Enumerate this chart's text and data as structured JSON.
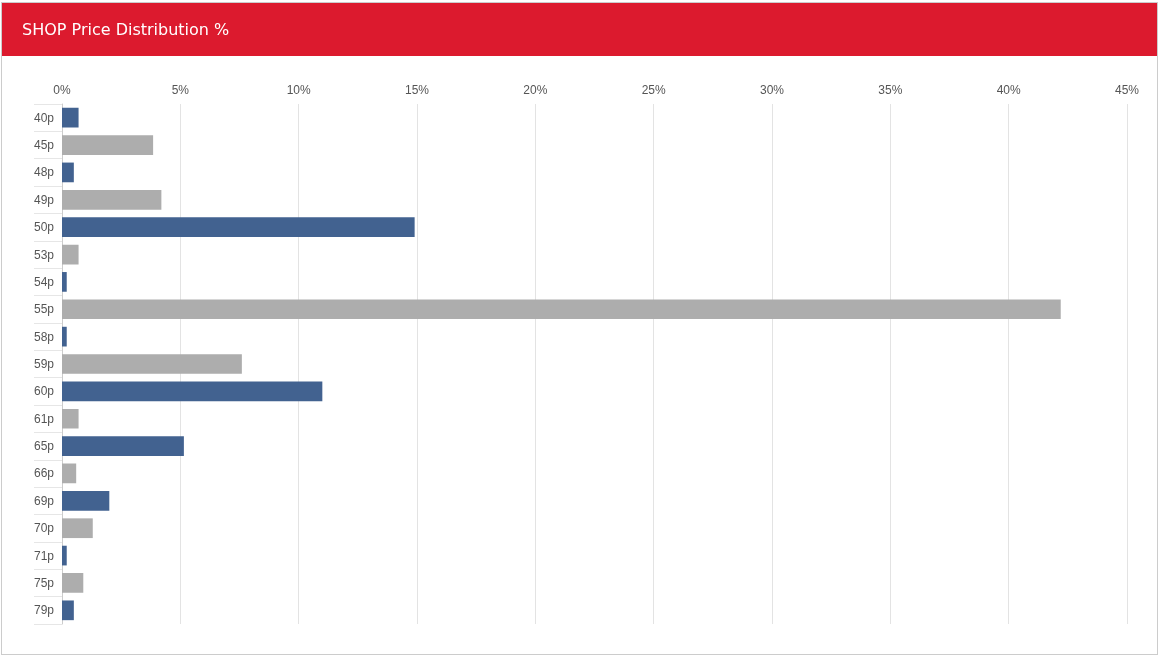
{
  "chart_data": {
    "type": "bar",
    "orientation": "horizontal",
    "title": "SHOP Price Distribution %",
    "categories": [
      "40p",
      "45p",
      "48p",
      "49p",
      "50p",
      "53p",
      "54p",
      "55p",
      "58p",
      "59p",
      "60p",
      "61p",
      "65p",
      "66p",
      "69p",
      "70p",
      "71p",
      "75p",
      "79p"
    ],
    "values": [
      0.7,
      3.85,
      0.5,
      4.2,
      14.9,
      0.7,
      0.2,
      42.2,
      0.2,
      7.6,
      11.0,
      0.7,
      5.15,
      0.6,
      2.0,
      1.3,
      0.2,
      0.9,
      0.5
    ],
    "colors": [
      "#426290",
      "#adadad",
      "#426290",
      "#adadad",
      "#426290",
      "#adadad",
      "#426290",
      "#adadad",
      "#426290",
      "#adadad",
      "#426290",
      "#adadad",
      "#426290",
      "#adadad",
      "#426290",
      "#adadad",
      "#426290",
      "#adadad",
      "#426290"
    ],
    "xlim": [
      0,
      45
    ],
    "xticks": [
      {
        "value": 0,
        "label": "0%"
      },
      {
        "value": 5,
        "label": "5%"
      },
      {
        "value": 10,
        "label": "10%"
      },
      {
        "value": 15,
        "label": "15%"
      },
      {
        "value": 20,
        "label": "20%"
      },
      {
        "value": 25,
        "label": "25%"
      },
      {
        "value": 30,
        "label": "30%"
      },
      {
        "value": 35,
        "label": "35%"
      },
      {
        "value": 40,
        "label": "40%"
      },
      {
        "value": 45,
        "label": "45%"
      }
    ],
    "grid": "x"
  }
}
